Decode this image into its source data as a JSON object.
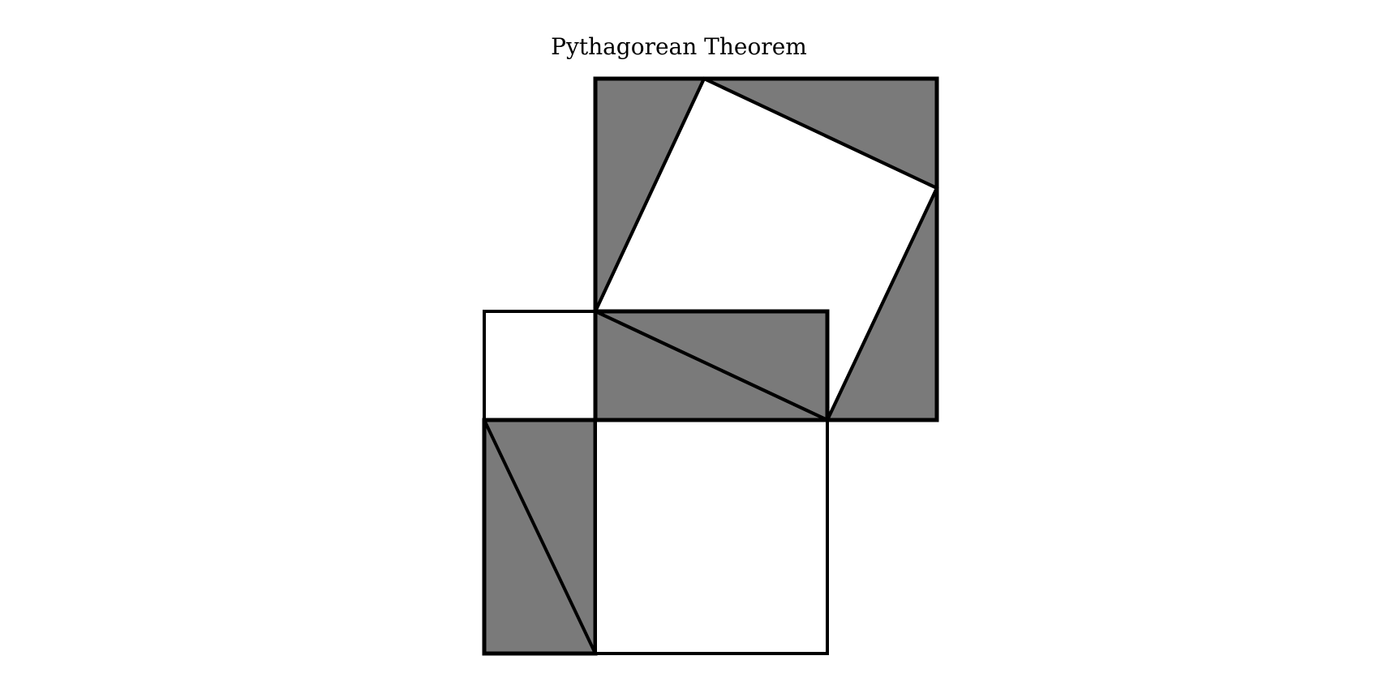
{
  "title": "Pythagorean Theorem",
  "colors": {
    "background": "#ffffff",
    "shaded_fill": "#7a7a7a",
    "stroke": "#000000"
  }
}
